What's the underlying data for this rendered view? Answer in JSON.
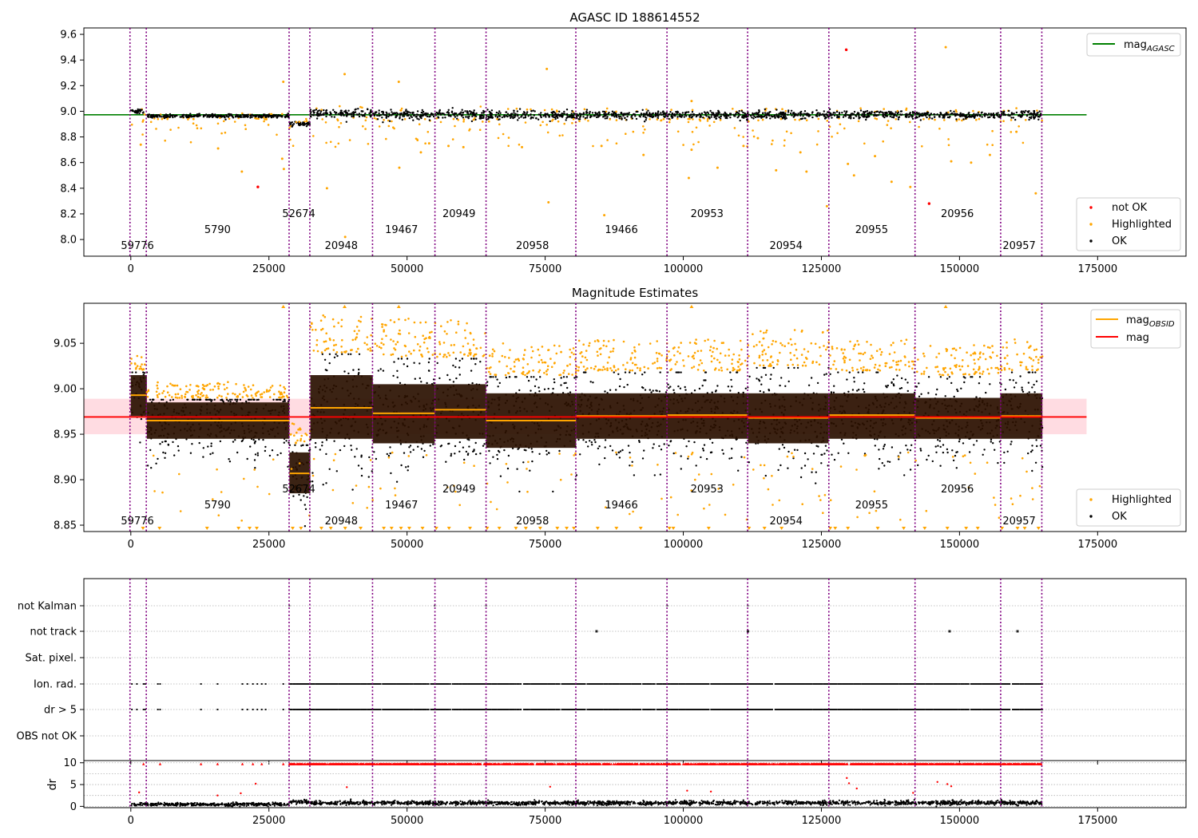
{
  "colors": {
    "ok": "#000000",
    "highlighted": "#ffa500",
    "not_ok": "#ff0000",
    "mag_agasc": "#008000",
    "mag_obsid": "#ffa500",
    "mag": "#ff0000",
    "obsid_line": "#800080",
    "band": "#ffc0cb"
  },
  "chart_data": [
    {
      "type": "scatter",
      "title": "AGASC ID 188614552",
      "xlabel": "",
      "ylabel": "",
      "xlim": [
        -8500,
        191000
      ],
      "ylim": [
        7.87,
        9.65
      ],
      "x_ticks": [
        0,
        25000,
        50000,
        75000,
        100000,
        125000,
        150000,
        175000
      ],
      "y_ticks": [
        8.0,
        8.2,
        8.4,
        8.6,
        8.8,
        9.0,
        9.2,
        9.4,
        9.6
      ],
      "grid": false,
      "legend_upper": {
        "position": "top-right",
        "entries": [
          {
            "label": "mag",
            "subscript": "AGASC",
            "color": "#008000"
          }
        ]
      },
      "legend_lower": {
        "position": "bottom-right",
        "entries": [
          {
            "label": "not OK",
            "color": "#ff0000"
          },
          {
            "label": "Highlighted",
            "color": "#ffa500"
          },
          {
            "label": "OK",
            "color": "#000000"
          }
        ]
      },
      "mag_agasc": {
        "value": 8.973,
        "x_range": [
          -8500,
          173000
        ]
      },
      "ok_bands": [
        {
          "x": [
            0,
            2900
          ],
          "center": 9.0,
          "spread": 0.02
        },
        {
          "x": [
            2900,
            28700
          ],
          "center": 8.963,
          "spread": 0.015
        },
        {
          "x": [
            28700,
            32500
          ],
          "center": 8.9,
          "spread": 0.02
        },
        {
          "x": [
            32500,
            43800
          ],
          "center": 8.982,
          "spread": 0.04
        },
        {
          "x": [
            43800,
            55000
          ],
          "center": 8.975,
          "spread": 0.04
        },
        {
          "x": [
            55000,
            64300
          ],
          "center": 8.978,
          "spread": 0.04
        },
        {
          "x": [
            64300,
            80600
          ],
          "center": 8.968,
          "spread": 0.035
        },
        {
          "x": [
            80600,
            97100
          ],
          "center": 8.972,
          "spread": 0.035
        },
        {
          "x": [
            97100,
            111700
          ],
          "center": 8.972,
          "spread": 0.035
        },
        {
          "x": [
            111700,
            126300
          ],
          "center": 8.97,
          "spread": 0.035
        },
        {
          "x": [
            126300,
            142000
          ],
          "center": 8.972,
          "spread": 0.035
        },
        {
          "x": [
            142000,
            157400
          ],
          "center": 8.968,
          "spread": 0.03
        },
        {
          "x": [
            157400,
            165000
          ],
          "center": 8.972,
          "spread": 0.04
        }
      ],
      "not_ok_points": [
        {
          "x": 23000,
          "y": 8.41
        },
        {
          "x": 129500,
          "y": 9.48
        },
        {
          "x": 144500,
          "y": 8.28
        }
      ],
      "highlighted_outliers": [
        {
          "x": 27600,
          "y": 9.23
        },
        {
          "x": 38700,
          "y": 9.29
        },
        {
          "x": 48500,
          "y": 9.23
        },
        {
          "x": 75300,
          "y": 9.33
        },
        {
          "x": 101500,
          "y": 9.08
        },
        {
          "x": 147500,
          "y": 9.5
        },
        {
          "x": 1800,
          "y": 8.74
        },
        {
          "x": 15800,
          "y": 8.71
        },
        {
          "x": 20100,
          "y": 8.53
        },
        {
          "x": 27400,
          "y": 8.63
        },
        {
          "x": 27700,
          "y": 8.55
        },
        {
          "x": 35500,
          "y": 8.4
        },
        {
          "x": 38800,
          "y": 8.02
        },
        {
          "x": 48600,
          "y": 8.56
        },
        {
          "x": 52500,
          "y": 8.68
        },
        {
          "x": 54000,
          "y": 8.75
        },
        {
          "x": 57500,
          "y": 8.73
        },
        {
          "x": 60200,
          "y": 8.72
        },
        {
          "x": 70800,
          "y": 8.72
        },
        {
          "x": 75600,
          "y": 8.29
        },
        {
          "x": 85200,
          "y": 8.73
        },
        {
          "x": 85700,
          "y": 8.19
        },
        {
          "x": 92800,
          "y": 8.66
        },
        {
          "x": 101000,
          "y": 8.48
        },
        {
          "x": 101500,
          "y": 8.7
        },
        {
          "x": 106200,
          "y": 8.56
        },
        {
          "x": 110900,
          "y": 8.73
        },
        {
          "x": 116800,
          "y": 8.54
        },
        {
          "x": 121200,
          "y": 8.68
        },
        {
          "x": 122300,
          "y": 8.53
        },
        {
          "x": 126000,
          "y": 8.26
        },
        {
          "x": 129800,
          "y": 8.59
        },
        {
          "x": 130900,
          "y": 8.5
        },
        {
          "x": 134700,
          "y": 8.65
        },
        {
          "x": 137700,
          "y": 8.45
        },
        {
          "x": 141100,
          "y": 8.41
        },
        {
          "x": 148500,
          "y": 8.61
        },
        {
          "x": 152100,
          "y": 8.6
        },
        {
          "x": 155500,
          "y": 8.66
        },
        {
          "x": 163800,
          "y": 8.36
        },
        {
          "x": 160300,
          "y": 8.84
        },
        {
          "x": 113500,
          "y": 8.79
        }
      ]
    },
    {
      "type": "scatter",
      "title": "Magnitude Estimates",
      "xlabel": "",
      "ylabel": "",
      "xlim": [
        -8500,
        191000
      ],
      "ylim": [
        8.843,
        9.094
      ],
      "x_ticks": [
        0,
        25000,
        50000,
        75000,
        100000,
        125000,
        150000,
        175000
      ],
      "y_ticks": [
        8.85,
        8.9,
        8.95,
        9.0,
        9.05
      ],
      "grid": false,
      "legend_upper": {
        "position": "top-right",
        "entries": [
          {
            "label": "mag",
            "subscript": "OBSID",
            "color": "#ffa500"
          },
          {
            "label": "mag",
            "subscript": "",
            "color": "#ff0000"
          }
        ]
      },
      "legend_lower": {
        "position": "bottom-right",
        "entries": [
          {
            "label": "Highlighted",
            "color": "#ffa500"
          },
          {
            "label": "OK",
            "color": "#000000"
          }
        ]
      },
      "mag": {
        "value": 8.969,
        "band": [
          8.95,
          8.989
        ],
        "x_range": [
          -8500,
          173000
        ]
      },
      "obsid_segments": [
        {
          "x": [
            0,
            2900
          ],
          "mag": 8.993,
          "lo": 8.97,
          "hi": 9.015,
          "highlight_above": 9.02
        },
        {
          "x": [
            2900,
            28700
          ],
          "mag": 8.965,
          "lo": 8.945,
          "hi": 8.985,
          "highlight_above": 8.99
        },
        {
          "x": [
            28700,
            32500
          ],
          "mag": 8.907,
          "lo": 8.885,
          "hi": 8.93,
          "highlight_above": 8.94
        },
        {
          "x": [
            32500,
            43800
          ],
          "mag": 8.979,
          "lo": 8.945,
          "hi": 9.015,
          "highlight_above": 9.04
        },
        {
          "x": [
            43800,
            55000
          ],
          "mag": 8.973,
          "lo": 8.94,
          "hi": 9.005,
          "highlight_above": 9.035
        },
        {
          "x": [
            55000,
            64300
          ],
          "mag": 8.977,
          "lo": 8.945,
          "hi": 9.005,
          "highlight_above": 9.035
        },
        {
          "x": [
            64300,
            80600
          ],
          "mag": 8.965,
          "lo": 8.935,
          "hi": 8.995,
          "highlight_above": 9.015
        },
        {
          "x": [
            80600,
            97100
          ],
          "mag": 8.97,
          "lo": 8.945,
          "hi": 8.995,
          "highlight_above": 9.02
        },
        {
          "x": [
            97100,
            111700
          ],
          "mag": 8.971,
          "lo": 8.945,
          "hi": 8.995,
          "highlight_above": 9.02
        },
        {
          "x": [
            111700,
            126300
          ],
          "mag": 8.968,
          "lo": 8.94,
          "hi": 8.995,
          "highlight_above": 9.025
        },
        {
          "x": [
            126300,
            142000
          ],
          "mag": 8.971,
          "lo": 8.945,
          "hi": 8.995,
          "highlight_above": 9.02
        },
        {
          "x": [
            142000,
            157400
          ],
          "mag": 8.968,
          "lo": 8.945,
          "hi": 8.99,
          "highlight_above": 9.015
        },
        {
          "x": [
            157400,
            165000
          ],
          "mag": 8.97,
          "lo": 8.945,
          "hi": 8.995,
          "highlight_above": 9.02
        }
      ],
      "clipped_low_x": [
        2200,
        5200,
        13800,
        19500,
        21500,
        22800,
        29300,
        30800,
        34500,
        36200,
        38800,
        41600,
        45800,
        47200,
        48900,
        50400,
        52800,
        55300,
        57600,
        61400,
        64500,
        66700,
        69700,
        71500,
        74100,
        77200,
        78900,
        80200,
        84500,
        87900,
        92300,
        97500,
        98200,
        104600,
        111900,
        114700,
        117800,
        126600,
        127500,
        129800,
        135200,
        139900,
        143700,
        147800,
        151200,
        153300,
        157700,
        160500,
        161800,
        164300
      ],
      "clipped_high_x": [
        27600,
        38700,
        48500,
        101500,
        147500
      ]
    },
    {
      "type": "scatter",
      "title": "",
      "xlabel": "",
      "ylabel": "",
      "xlim": [
        -8500,
        191000
      ],
      "categories": [
        "not Kalman",
        "not track",
        "Sat. pixel.",
        "Ion. rad.",
        "dr > 5",
        "OBS not OK"
      ],
      "grid": true,
      "flag_points": {
        "not Kalman": [
          28700,
          55000,
          64300,
          97100,
          111700
        ],
        "not track": [
          84300,
          111700,
          148200,
          160500
        ],
        "sparse_ion_and_dr": [
          200,
          1100,
          2300,
          2600,
          4900,
          5300,
          12700,
          15700,
          20200,
          21100,
          22100,
          22900,
          23700,
          24400,
          27600,
          36300,
          38200,
          40300,
          43900,
          45600,
          48800,
          50100,
          52000,
          53300,
          57000,
          58600,
          62700,
          63500,
          79000,
          84400,
          88200,
          96400,
          103600,
          110500,
          117800,
          125900,
          134100,
          137200,
          152600,
          156400
        ],
        "dense_ranges": [
          [
            28700,
            64300
          ],
          [
            64300,
            165000
          ]
        ]
      }
    },
    {
      "type": "scatter",
      "title": "",
      "xlabel": "",
      "ylabel": "dr",
      "xlim": [
        -8500,
        191000
      ],
      "ylim": [
        -0.3,
        10.5
      ],
      "y_ticks": [
        0,
        5,
        10
      ],
      "grid": true,
      "dr_bands": [
        {
          "x": [
            0,
            28700
          ],
          "center": 0.45,
          "spread": 0.35
        },
        {
          "x": [
            28700,
            32500
          ],
          "center": 1.05,
          "spread": 0.45
        },
        {
          "x": [
            32500,
            165000
          ],
          "center": 0.8,
          "spread": 0.45
        }
      ],
      "dr_clipped_red_x": [
        2300,
        5300,
        12700,
        15700,
        20200,
        22100,
        23700,
        27600,
        38200,
        40300,
        45600,
        48800,
        52000,
        53300,
        57000,
        62700
      ],
      "dr_red_outliers": [
        {
          "x": 22600,
          "y": 5.2
        },
        {
          "x": 39100,
          "y": 4.4
        },
        {
          "x": 129600,
          "y": 6.5
        },
        {
          "x": 130000,
          "y": 5.3
        },
        {
          "x": 146000,
          "y": 5.6
        },
        {
          "x": 147800,
          "y": 5.1
        },
        {
          "x": 148500,
          "y": 4.6
        },
        {
          "x": 141600,
          "y": 3.1
        },
        {
          "x": 105000,
          "y": 3.4
        },
        {
          "x": 100700,
          "y": 3.6
        },
        {
          "x": 131400,
          "y": 4.1
        },
        {
          "x": 75900,
          "y": 4.5
        },
        {
          "x": 1500,
          "y": 3.2
        },
        {
          "x": 19900,
          "y": 3.0
        },
        {
          "x": 15700,
          "y": 2.5
        }
      ]
    }
  ],
  "obsid_boundaries": [
    -150,
    2800,
    28650,
    32400,
    43750,
    55050,
    64300,
    80550,
    97050,
    111650,
    126350,
    141950,
    157450,
    164900
  ],
  "obsid_labels": [
    {
      "text": "59776",
      "x": 1200,
      "row": "low"
    },
    {
      "text": "5790",
      "x": 15700,
      "row": "mid"
    },
    {
      "text": "52674",
      "x": 30400,
      "row": "high"
    },
    {
      "text": "20948",
      "x": 38100,
      "row": "low"
    },
    {
      "text": "19467",
      "x": 49000,
      "row": "mid"
    },
    {
      "text": "20949",
      "x": 59400,
      "row": "high"
    },
    {
      "text": "20958",
      "x": 72700,
      "row": "low"
    },
    {
      "text": "19466",
      "x": 88800,
      "row": "mid"
    },
    {
      "text": "20953",
      "x": 104300,
      "row": "high"
    },
    {
      "text": "20954",
      "x": 118600,
      "row": "low"
    },
    {
      "text": "20955",
      "x": 134100,
      "row": "mid"
    },
    {
      "text": "20956",
      "x": 149600,
      "row": "high"
    },
    {
      "text": "20957",
      "x": 160800,
      "row": "low"
    }
  ]
}
